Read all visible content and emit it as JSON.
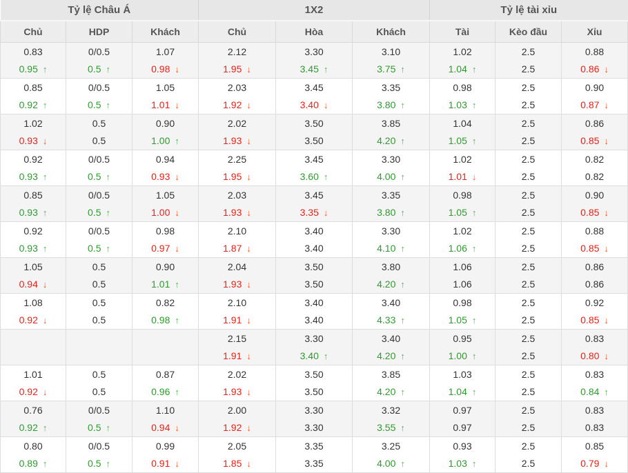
{
  "table": {
    "groups": [
      {
        "label": "Tỷ lệ Châu Á",
        "columns": [
          "Chủ",
          "HDP",
          "Khách"
        ]
      },
      {
        "label": "1X2",
        "columns": [
          "Chủ",
          "Hòa",
          "Khách"
        ]
      },
      {
        "label": "Tỷ lệ tài xỉu",
        "columns": [
          "Tài",
          "Kèo đầu",
          "Xỉu"
        ]
      }
    ],
    "colors": {
      "up_text": "#2e9b2e",
      "up_arrow": "#55b155",
      "down_text": "#e2241b",
      "down_arrow": "#f05423",
      "flat_text": "#333333",
      "header_bg": "#e7e7e7",
      "subheader_bg": "#ededed",
      "row_alt_bg": "#f4f4f4"
    },
    "rows": [
      [
        {
          "t": "0.83",
          "b": "0.95",
          "d": "up"
        },
        {
          "t": "0/0.5",
          "b": "0.5",
          "d": "up"
        },
        {
          "t": "1.07",
          "b": "0.98",
          "d": "down"
        },
        {
          "t": "2.12",
          "b": "1.95",
          "d": "down"
        },
        {
          "t": "3.30",
          "b": "3.45",
          "d": "up"
        },
        {
          "t": "3.10",
          "b": "3.75",
          "d": "up"
        },
        {
          "t": "1.02",
          "b": "1.04",
          "d": "up"
        },
        {
          "t": "2.5",
          "b": "2.5",
          "d": ""
        },
        {
          "t": "0.88",
          "b": "0.86",
          "d": "down"
        }
      ],
      [
        {
          "t": "0.85",
          "b": "0.92",
          "d": "up"
        },
        {
          "t": "0/0.5",
          "b": "0.5",
          "d": "up"
        },
        {
          "t": "1.05",
          "b": "1.01",
          "d": "down"
        },
        {
          "t": "2.03",
          "b": "1.92",
          "d": "down"
        },
        {
          "t": "3.45",
          "b": "3.40",
          "d": "down"
        },
        {
          "t": "3.35",
          "b": "3.80",
          "d": "up"
        },
        {
          "t": "0.98",
          "b": "1.03",
          "d": "up"
        },
        {
          "t": "2.5",
          "b": "2.5",
          "d": ""
        },
        {
          "t": "0.90",
          "b": "0.87",
          "d": "down"
        }
      ],
      [
        {
          "t": "1.02",
          "b": "0.93",
          "d": "down"
        },
        {
          "t": "0.5",
          "b": "0.5",
          "d": ""
        },
        {
          "t": "0.90",
          "b": "1.00",
          "d": "up"
        },
        {
          "t": "2.02",
          "b": "1.93",
          "d": "down"
        },
        {
          "t": "3.50",
          "b": "3.50",
          "d": ""
        },
        {
          "t": "3.85",
          "b": "4.20",
          "d": "up"
        },
        {
          "t": "1.04",
          "b": "1.05",
          "d": "up"
        },
        {
          "t": "2.5",
          "b": "2.5",
          "d": ""
        },
        {
          "t": "0.86",
          "b": "0.85",
          "d": "down"
        }
      ],
      [
        {
          "t": "0.92",
          "b": "0.93",
          "d": "up"
        },
        {
          "t": "0/0.5",
          "b": "0.5",
          "d": "up"
        },
        {
          "t": "0.94",
          "b": "0.93",
          "d": "down"
        },
        {
          "t": "2.25",
          "b": "1.95",
          "d": "down"
        },
        {
          "t": "3.45",
          "b": "3.60",
          "d": "up"
        },
        {
          "t": "3.30",
          "b": "4.00",
          "d": "up"
        },
        {
          "t": "1.02",
          "b": "1.01",
          "d": "down"
        },
        {
          "t": "2.5",
          "b": "2.5",
          "d": ""
        },
        {
          "t": "0.82",
          "b": "0.82",
          "d": ""
        }
      ],
      [
        {
          "t": "0.85",
          "b": "0.93",
          "d": "up"
        },
        {
          "t": "0/0.5",
          "b": "0.5",
          "d": "up"
        },
        {
          "t": "1.05",
          "b": "1.00",
          "d": "down"
        },
        {
          "t": "2.03",
          "b": "1.93",
          "d": "down"
        },
        {
          "t": "3.45",
          "b": "3.35",
          "d": "down"
        },
        {
          "t": "3.35",
          "b": "3.80",
          "d": "up"
        },
        {
          "t": "0.98",
          "b": "1.05",
          "d": "up"
        },
        {
          "t": "2.5",
          "b": "2.5",
          "d": ""
        },
        {
          "t": "0.90",
          "b": "0.85",
          "d": "down"
        }
      ],
      [
        {
          "t": "0.92",
          "b": "0.93",
          "d": "up"
        },
        {
          "t": "0/0.5",
          "b": "0.5",
          "d": "up"
        },
        {
          "t": "0.98",
          "b": "0.97",
          "d": "down"
        },
        {
          "t": "2.10",
          "b": "1.87",
          "d": "down"
        },
        {
          "t": "3.40",
          "b": "3.40",
          "d": ""
        },
        {
          "t": "3.30",
          "b": "4.10",
          "d": "up"
        },
        {
          "t": "1.02",
          "b": "1.06",
          "d": "up"
        },
        {
          "t": "2.5",
          "b": "2.5",
          "d": ""
        },
        {
          "t": "0.88",
          "b": "0.85",
          "d": "down"
        }
      ],
      [
        {
          "t": "1.05",
          "b": "0.94",
          "d": "down"
        },
        {
          "t": "0.5",
          "b": "0.5",
          "d": ""
        },
        {
          "t": "0.90",
          "b": "1.01",
          "d": "up"
        },
        {
          "t": "2.04",
          "b": "1.93",
          "d": "down"
        },
        {
          "t": "3.50",
          "b": "3.50",
          "d": ""
        },
        {
          "t": "3.80",
          "b": "4.20",
          "d": "up"
        },
        {
          "t": "1.06",
          "b": "1.06",
          "d": ""
        },
        {
          "t": "2.5",
          "b": "2.5",
          "d": ""
        },
        {
          "t": "0.86",
          "b": "0.86",
          "d": ""
        }
      ],
      [
        {
          "t": "1.08",
          "b": "0.92",
          "d": "down"
        },
        {
          "t": "0.5",
          "b": "0.5",
          "d": ""
        },
        {
          "t": "0.82",
          "b": "0.98",
          "d": "up"
        },
        {
          "t": "2.10",
          "b": "1.91",
          "d": "down"
        },
        {
          "t": "3.40",
          "b": "3.40",
          "d": ""
        },
        {
          "t": "3.40",
          "b": "4.33",
          "d": "up"
        },
        {
          "t": "0.98",
          "b": "1.05",
          "d": "up"
        },
        {
          "t": "2.5",
          "b": "2.5",
          "d": ""
        },
        {
          "t": "0.92",
          "b": "0.85",
          "d": "down"
        }
      ],
      [
        {
          "t": "",
          "b": "",
          "d": ""
        },
        {
          "t": "",
          "b": "",
          "d": ""
        },
        {
          "t": "",
          "b": "",
          "d": ""
        },
        {
          "t": "2.15",
          "b": "1.91",
          "d": "down"
        },
        {
          "t": "3.30",
          "b": "3.40",
          "d": "up"
        },
        {
          "t": "3.40",
          "b": "4.20",
          "d": "up"
        },
        {
          "t": "0.95",
          "b": "1.00",
          "d": "up"
        },
        {
          "t": "2.5",
          "b": "2.5",
          "d": ""
        },
        {
          "t": "0.83",
          "b": "0.80",
          "d": "down"
        }
      ],
      [
        {
          "t": "1.01",
          "b": "0.92",
          "d": "down"
        },
        {
          "t": "0.5",
          "b": "0.5",
          "d": ""
        },
        {
          "t": "0.87",
          "b": "0.96",
          "d": "up"
        },
        {
          "t": "2.02",
          "b": "1.93",
          "d": "down"
        },
        {
          "t": "3.50",
          "b": "3.50",
          "d": ""
        },
        {
          "t": "3.85",
          "b": "4.20",
          "d": "up"
        },
        {
          "t": "1.03",
          "b": "1.04",
          "d": "up"
        },
        {
          "t": "2.5",
          "b": "2.5",
          "d": ""
        },
        {
          "t": "0.83",
          "b": "0.84",
          "d": "up"
        }
      ],
      [
        {
          "t": "0.76",
          "b": "0.92",
          "d": "up"
        },
        {
          "t": "0/0.5",
          "b": "0.5",
          "d": "up"
        },
        {
          "t": "1.10",
          "b": "0.94",
          "d": "down"
        },
        {
          "t": "2.00",
          "b": "1.92",
          "d": "down"
        },
        {
          "t": "3.30",
          "b": "3.30",
          "d": ""
        },
        {
          "t": "3.32",
          "b": "3.55",
          "d": "up"
        },
        {
          "t": "0.97",
          "b": "0.97",
          "d": ""
        },
        {
          "t": "2.5",
          "b": "2.5",
          "d": ""
        },
        {
          "t": "0.83",
          "b": "0.83",
          "d": ""
        }
      ],
      [
        {
          "t": "0.80",
          "b": "0.89",
          "d": "up"
        },
        {
          "t": "0/0.5",
          "b": "0.5",
          "d": "up"
        },
        {
          "t": "0.99",
          "b": "0.91",
          "d": "down"
        },
        {
          "t": "2.05",
          "b": "1.85",
          "d": "down"
        },
        {
          "t": "3.35",
          "b": "3.35",
          "d": ""
        },
        {
          "t": "3.25",
          "b": "4.00",
          "d": "up"
        },
        {
          "t": "0.93",
          "b": "1.03",
          "d": "up"
        },
        {
          "t": "2.5",
          "b": "2.5",
          "d": ""
        },
        {
          "t": "0.85",
          "b": "0.79",
          "d": "down"
        }
      ]
    ]
  }
}
